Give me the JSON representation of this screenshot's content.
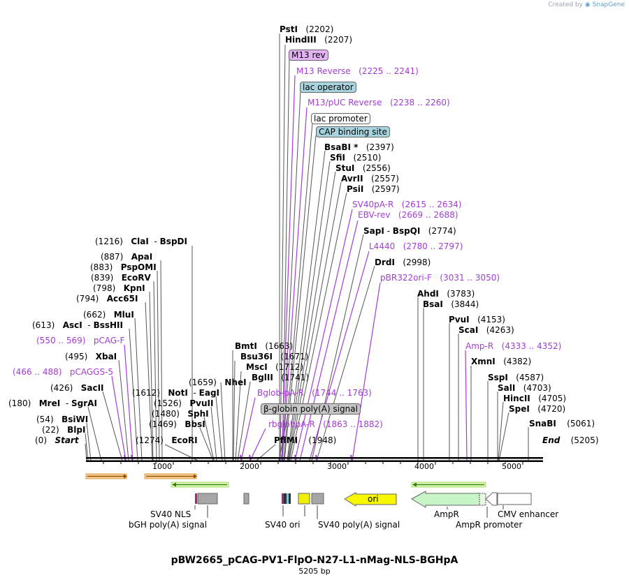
{
  "credit": {
    "prefix": "Created by",
    "brand": "SnapGene"
  },
  "title": "pBW2665_pCAG-PV1-FlpO-N27-L1-nMag-NLS-BGHpA",
  "size": "5205 bp",
  "axis": {
    "ticks": [
      "1000",
      "2000",
      "3000",
      "4000",
      "5000"
    ]
  },
  "labels": [
    {
      "id": "psti",
      "text": "PstI",
      "pos": "(2202)"
    },
    {
      "id": "hindiii",
      "text": "HindIII",
      "pos": "(2207)"
    },
    {
      "id": "bsabi",
      "text": "BsaBI *",
      "pos": "(2397)"
    },
    {
      "id": "sfii",
      "text": "SfiI",
      "pos": "(2510)"
    },
    {
      "id": "stui",
      "text": "StuI",
      "pos": "(2556)"
    },
    {
      "id": "avrii",
      "text": "AvrII",
      "pos": "(2557)"
    },
    {
      "id": "psii",
      "text": "PsiI",
      "pos": "(2597)"
    },
    {
      "id": "sapi",
      "text": "SapI",
      "sep": "-",
      "text2": "BspQI",
      "pos": "(2774)"
    },
    {
      "id": "drdi",
      "text": "DrdI",
      "pos": "(2998)"
    },
    {
      "id": "ahdi",
      "text": "AhdI",
      "pos": "(3783)"
    },
    {
      "id": "bsai",
      "text": "BsaI",
      "pos": "(3844)"
    },
    {
      "id": "pvui",
      "text": "PvuI",
      "pos": "(4153)"
    },
    {
      "id": "scai",
      "text": "ScaI",
      "pos": "(4263)"
    },
    {
      "id": "xmni",
      "text": "XmnI",
      "pos": "(4382)"
    },
    {
      "id": "sspi",
      "text": "SspI",
      "pos": "(4587)"
    },
    {
      "id": "sali",
      "text": "SalI",
      "pos": "(4703)"
    },
    {
      "id": "hincii",
      "text": "HincII",
      "pos": "(4705)"
    },
    {
      "id": "spei",
      "text": "SpeI",
      "pos": "(4720)"
    },
    {
      "id": "snabi",
      "text": "SnaBI",
      "pos": "(5061)"
    },
    {
      "id": "end",
      "text": "End",
      "pos": "(5205)"
    },
    {
      "id": "bmti",
      "text": "BmtI",
      "pos": "(1663)"
    },
    {
      "id": "bsu36i",
      "text": "Bsu36I",
      "pos": "(1671)"
    },
    {
      "id": "msci",
      "text": "MscI",
      "pos": "(1712)"
    },
    {
      "id": "bglii",
      "text": "BglII",
      "pos": "(1741)"
    },
    {
      "id": "pflmi",
      "text": "PflMI",
      "pos": "(1948)"
    },
    {
      "id": "clai",
      "pos": "(1216)",
      "text": "ClaI",
      "sep": "-",
      "text2": "BspDI"
    },
    {
      "id": "apai",
      "pos": "(887)",
      "text": "ApaI"
    },
    {
      "id": "pspomi",
      "pos": "(883)",
      "text": "PspOMI"
    },
    {
      "id": "ecorv",
      "pos": "(839)",
      "text": "EcoRV"
    },
    {
      "id": "kpni",
      "pos": "(798)",
      "text": "KpnI"
    },
    {
      "id": "acc65i",
      "pos": "(794)",
      "text": "Acc65I"
    },
    {
      "id": "mlui",
      "pos": "(662)",
      "text": "MluI"
    },
    {
      "id": "asci",
      "pos": "(613)",
      "text": "AscI",
      "sep": "-",
      "text2": "BssHII"
    },
    {
      "id": "xbai",
      "pos": "(495)",
      "text": "XbaI"
    },
    {
      "id": "sacii",
      "pos": "(426)",
      "text": "SacII"
    },
    {
      "id": "mrei",
      "pos": "(180)",
      "text": "MreI",
      "sep": "-",
      "text2": "SgrAI"
    },
    {
      "id": "bsiwi",
      "pos": "(54)",
      "text": "BsiWI"
    },
    {
      "id": "blpi",
      "pos": "(22)",
      "text": "BlpI"
    },
    {
      "id": "start",
      "pos": "(0)",
      "text": "Start"
    },
    {
      "id": "nhei",
      "pos": "(1659)",
      "text": "NheI"
    },
    {
      "id": "noti",
      "pos": "(1612)",
      "text": "NotI",
      "sep": "-",
      "text2": "EagI"
    },
    {
      "id": "pvuii",
      "pos": "(1526)",
      "text": "PvuII"
    },
    {
      "id": "sphi",
      "pos": "(1480)",
      "text": "SphI"
    },
    {
      "id": "bbsi",
      "pos": "(1469)",
      "text": "BbsI"
    },
    {
      "id": "ecori",
      "pos": "(1274)",
      "text": "EcoRI"
    }
  ],
  "primers": [
    {
      "id": "m13reverse",
      "text": "M13 Reverse",
      "pos": "(2225 .. 2241)"
    },
    {
      "id": "m13puc",
      "text": "M13/pUC Reverse",
      "pos": "(2238 .. 2260)"
    },
    {
      "id": "sv40par",
      "text": "SV40pA-R",
      "pos": "(2615 .. 2634)"
    },
    {
      "id": "ebvrev",
      "text": "EBV-rev",
      "pos": "(2669 .. 2688)"
    },
    {
      "id": "l4440",
      "text": "L4440",
      "pos": "(2780 .. 2797)"
    },
    {
      "id": "pbr322",
      "text": "pBR322ori-F",
      "pos": "(3031 .. 3050)"
    },
    {
      "id": "ampr",
      "text": "Amp-R",
      "pos": "(4333 .. 4352)"
    },
    {
      "id": "pcagf",
      "text": "pCAG-F",
      "pos": "(550 .. 569)"
    },
    {
      "id": "pcaggs5",
      "text": "pCAGGS-5",
      "pos": "(466 .. 488)"
    },
    {
      "id": "bglobpar",
      "text": "Bglob-pA-R",
      "pos": "(1744 .. 1763)"
    },
    {
      "id": "rbglobpar",
      "text": "rbglobpA-R",
      "pos": "(1863 .. 1882)"
    }
  ],
  "boxes": [
    {
      "id": "m13rev",
      "text": "M13 rev"
    },
    {
      "id": "lacop",
      "text": "lac operator"
    },
    {
      "id": "lacprom",
      "text": "lac promoter"
    },
    {
      "id": "cap",
      "text": "CAP binding site"
    },
    {
      "id": "bglobin",
      "text": "β-globin poly(A) signal"
    }
  ],
  "features": [
    {
      "id": "ori",
      "text": "ori"
    },
    {
      "id": "sv40nls",
      "text": "SV40 NLS"
    },
    {
      "id": "bgh",
      "text": "bGH poly(A) signal"
    },
    {
      "id": "sv40ori",
      "text": "SV40 ori"
    },
    {
      "id": "sv40pa",
      "text": "SV40 poly(A) signal"
    },
    {
      "id": "ampr_f",
      "text": "AmpR"
    },
    {
      "id": "amppromoter",
      "text": "AmpR promoter"
    },
    {
      "id": "cmv",
      "text": "CMV enhancer"
    }
  ]
}
